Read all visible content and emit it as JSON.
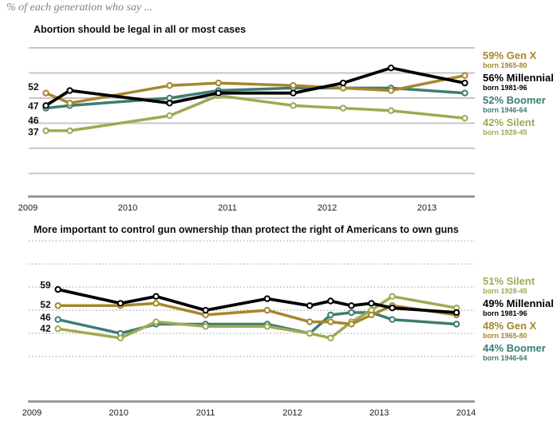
{
  "page": {
    "eyebrow": "% of each generation who say ..."
  },
  "colors": {
    "gold": "#a5872b",
    "black": "#000000",
    "teal": "#3d7d72",
    "green": "#9fa951",
    "grid": "#c6c6c6",
    "grid_dotted": "#b8b8b8",
    "axis": "#9b9b9b",
    "tick_text": "#1a1a1a",
    "start_label_text": "#111111"
  },
  "chart_data": [
    {
      "type": "line",
      "title": "Abortion should be legal in all or most cases",
      "x": [
        2009.18,
        2009.42,
        2010.42,
        2010.91,
        2011.66,
        2012.16,
        2012.64,
        2013.38
      ],
      "series": [
        {
          "name": "Gen X",
          "color": "gold",
          "values": [
            52,
            48,
            55,
            56,
            55,
            54,
            53,
            59
          ],
          "start_label": "52",
          "legend_label": "59% Gen X",
          "legend_born": "born 1965-80"
        },
        {
          "name": "Millennial",
          "color": "black",
          "values": [
            47,
            53,
            48,
            52,
            52,
            56,
            62,
            56
          ],
          "start_label": "47",
          "legend_label": "56% Millennial",
          "legend_born": "born 1981-96"
        },
        {
          "name": "Boomer",
          "color": "teal",
          "values": [
            46,
            47,
            50,
            53,
            54,
            54,
            54,
            52
          ],
          "start_label": "46",
          "legend_label": "52% Boomer",
          "legend_born": "born 1946-64"
        },
        {
          "name": "Silent",
          "color": "green",
          "values": [
            37,
            37,
            43,
            51,
            47,
            46,
            45,
            42
          ],
          "start_label": "37",
          "legend_label": "42% Silent",
          "legend_born": "born 1928-45"
        }
      ],
      "x_ticks": [
        {
          "label": "2009",
          "year": 2009
        },
        {
          "label": "2010",
          "year": 2010
        },
        {
          "label": "2011",
          "year": 2011
        },
        {
          "label": "2012",
          "year": 2012
        },
        {
          "label": "2013",
          "year": 2013
        }
      ],
      "grid": {
        "values": [
          20,
          30,
          40,
          50,
          60,
          70
        ],
        "style": "solid"
      },
      "ylim": [
        10,
        72
      ],
      "legend_position": "right"
    },
    {
      "type": "line",
      "title": "More important to control gun ownership than protect the right of Americans to own guns",
      "x": [
        2009.3,
        2010.02,
        2010.43,
        2011.0,
        2011.71,
        2012.2,
        2012.44,
        2012.68,
        2012.91,
        2013.15,
        2013.89
      ],
      "series": [
        {
          "name": "Silent",
          "color": "green",
          "values": [
            42,
            38,
            45,
            43,
            43,
            40,
            38,
            45,
            50,
            56,
            51
          ],
          "start_label": "42",
          "legend_label": "51% Silent",
          "legend_born": "born 1928-45"
        },
        {
          "name": "Millennial",
          "color": "black",
          "values": [
            59,
            53,
            56,
            50,
            55,
            52,
            54,
            52,
            53,
            51,
            49
          ],
          "start_label": "59",
          "legend_label": "49% Millennial",
          "legend_born": "born 1981-96"
        },
        {
          "name": "Gen X",
          "color": "gold",
          "values": [
            52,
            52,
            53,
            48,
            50,
            45,
            45,
            44,
            48,
            52,
            48
          ],
          "start_label": "52",
          "legend_label": "48% Gen X",
          "legend_born": "born 1965-80"
        },
        {
          "name": "Boomer",
          "color": "teal",
          "values": [
            46,
            40,
            44,
            44,
            44,
            40,
            48,
            49,
            49,
            46,
            44
          ],
          "start_label": "46",
          "legend_label": "44% Boomer",
          "legend_born": "born 1946-64"
        }
      ],
      "x_ticks": [
        {
          "label": "2009",
          "year": 2009
        },
        {
          "label": "2010",
          "year": 2010
        },
        {
          "label": "2011",
          "year": 2011
        },
        {
          "label": "2012",
          "year": 2012
        },
        {
          "label": "2013",
          "year": 2013
        },
        {
          "label": "2014",
          "year": 2014
        }
      ],
      "grid": {
        "values": [
          30,
          40,
          50,
          60,
          70,
          80
        ],
        "style": "dotted"
      },
      "ylim": [
        11,
        80
      ],
      "legend_position": "right"
    }
  ]
}
